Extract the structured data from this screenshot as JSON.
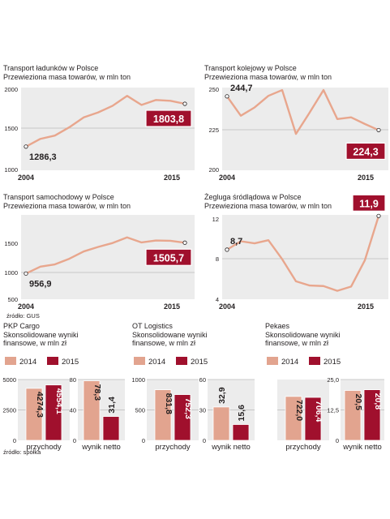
{
  "colors": {
    "line": "#e8a68d",
    "bar2014": "#e2a48f",
    "bar2015": "#a0102d",
    "panel": "#ececec",
    "grid": "#bdbdbd",
    "text": "#231f20",
    "white": "#ffffff"
  },
  "sources": {
    "gus": "źródło: GUS",
    "spolka": "źródło: spółka"
  },
  "legend_labels": {
    "y2014": "2014",
    "y2015": "2015"
  },
  "chart_data": [
    {
      "id": "cargo",
      "type": "line",
      "title": "Transport ładunków w Polsce",
      "subtitle": "Przewieziona masa towarów, w mln ton",
      "x": [
        2004,
        2005,
        2006,
        2007,
        2008,
        2009,
        2010,
        2011,
        2012,
        2013,
        2014,
        2015
      ],
      "values": [
        1286.3,
        1380,
        1420,
        1520,
        1640,
        1700,
        1780,
        1900,
        1790,
        1850,
        1840,
        1803.8
      ],
      "ylim": [
        1000,
        2000
      ],
      "yticks": [
        "2000",
        "1500",
        "1000"
      ],
      "xlabels": [
        "2004",
        "2015"
      ],
      "first_label": "1286,3",
      "last_label": "1803,8"
    },
    {
      "id": "rail",
      "type": "line",
      "title": "Transport kolejowy w Polsce",
      "subtitle": "Przewieziona masa towarów, w mln ton",
      "x": [
        2004,
        2005,
        2006,
        2007,
        2008,
        2009,
        2010,
        2011,
        2012,
        2013,
        2014,
        2015
      ],
      "values": [
        244.7,
        233,
        238,
        245,
        248.5,
        222,
        235,
        248.5,
        231,
        232,
        228,
        224.3
      ],
      "ylim": [
        200,
        250
      ],
      "yticks": [
        "250",
        "225",
        "200"
      ],
      "xlabels": [
        "2004",
        "2015"
      ],
      "first_label": "244,7",
      "last_label": "224,3"
    },
    {
      "id": "road",
      "type": "line",
      "title": "Transport samochodowy w Polsce",
      "subtitle": "Przewieziona masa towarów, w mln ton",
      "x": [
        2004,
        2005,
        2006,
        2007,
        2008,
        2009,
        2010,
        2011,
        2012,
        2013,
        2014,
        2015
      ],
      "values": [
        956.9,
        1080,
        1120,
        1220,
        1350,
        1430,
        1500,
        1600,
        1510,
        1545,
        1540,
        1505.7
      ],
      "ylim": [
        500,
        2000
      ],
      "yticks": [
        "1500",
        "1000",
        "500"
      ],
      "xlabels": [
        "2004",
        "2015"
      ],
      "first_label": "956,9",
      "last_label": "1505,7"
    },
    {
      "id": "inland",
      "type": "line",
      "title": "Żegluga śródlądowa w Polsce",
      "subtitle": "Przewieziona masa towarów, w mln ton",
      "x": [
        2004,
        2005,
        2006,
        2007,
        2008,
        2009,
        2010,
        2011,
        2012,
        2013,
        2014,
        2015
      ],
      "values": [
        8.7,
        9.5,
        9.3,
        9.6,
        7.8,
        5.7,
        5.3,
        5.25,
        4.8,
        5.2,
        7.7,
        11.9
      ],
      "ylim": [
        4,
        12
      ],
      "yticks": [
        "12",
        "8",
        "4"
      ],
      "xlabels": [
        "2004",
        "2015"
      ],
      "first_label": "8,7",
      "last_label": "11,9"
    },
    {
      "id": "pkp",
      "type": "bar",
      "title": "PKP Cargo",
      "subtitle_lines": [
        "Skonsolidowane wyniki",
        "finansowe, w mln zł"
      ],
      "series": [
        "2014",
        "2015"
      ],
      "groups": [
        {
          "label": "przychody",
          "values": [
            4274.3,
            4554.1
          ],
          "labels": [
            "4274,3",
            "4554,1"
          ],
          "ylim": [
            0,
            5000
          ],
          "yticks": [
            "5000",
            "2500",
            "0"
          ]
        },
        {
          "label": "wynik netto",
          "values": [
            78.3,
            31.4
          ],
          "labels": [
            "78,3",
            "31,4"
          ],
          "ylim": [
            0,
            80
          ],
          "yticks": [
            "80",
            "40",
            "0"
          ]
        }
      ]
    },
    {
      "id": "otl",
      "type": "bar",
      "title": "OT Logistics",
      "subtitle_lines": [
        "Skonsolidowane wyniki",
        "finansowe, w mln zł"
      ],
      "series": [
        "2014",
        "2015"
      ],
      "groups": [
        {
          "label": "przychody",
          "values": [
            831.8,
            752.3
          ],
          "labels": [
            "831,8",
            "752,3"
          ],
          "ylim": [
            0,
            1000
          ],
          "yticks": [
            "1000",
            "500",
            "0"
          ]
        },
        {
          "label": "wynik netto",
          "values": [
            32.9,
            15.6
          ],
          "labels": [
            "32,9",
            "15,6"
          ],
          "ylim": [
            0,
            60
          ],
          "yticks": [
            "60",
            "30",
            "0"
          ]
        }
      ]
    },
    {
      "id": "pekaes",
      "type": "bar",
      "title": "Pekaes",
      "subtitle_lines": [
        "Skonsolidowane wyniki",
        "finansowe, w mln zł"
      ],
      "series": [
        "2014",
        "2015"
      ],
      "groups": [
        {
          "label": "przychody",
          "values": [
            722.0,
            706.4
          ],
          "labels": [
            "722,0",
            "706,4"
          ],
          "ylim": [
            0,
            1000
          ],
          "yticks": []
        },
        {
          "label": "wynik netto",
          "values": [
            20.5,
            20.8
          ],
          "labels": [
            "20,5",
            "20,8"
          ],
          "ylim": [
            0,
            25
          ],
          "yticks": [
            "25,0",
            "12,5",
            "0"
          ]
        }
      ]
    }
  ]
}
